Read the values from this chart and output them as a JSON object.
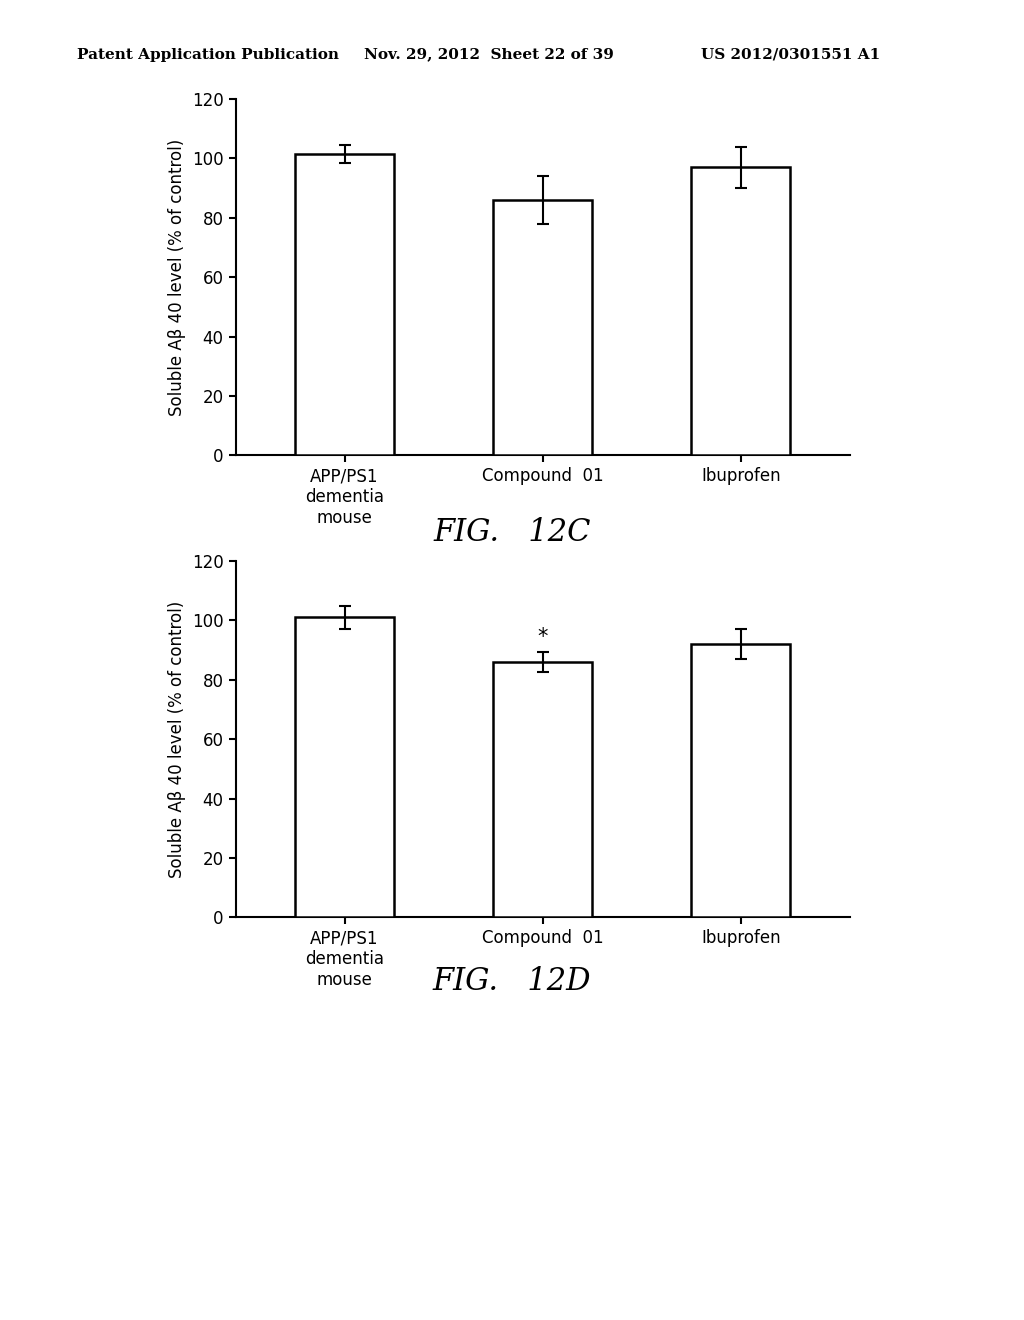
{
  "header_left": "Patent Application Publication",
  "header_mid": "Nov. 29, 2012  Sheet 22 of 39",
  "header_right": "US 2012/0301551 A1",
  "fig_c": {
    "categories": [
      "APP/PS1\ndementia\nmouse",
      "Compound  01",
      "Ibuprofen"
    ],
    "values": [
      101.5,
      86.0,
      97.0
    ],
    "errors": [
      3.0,
      8.0,
      7.0
    ],
    "ylabel": "Soluble Aβ 40 level (% of control)",
    "ylim": [
      0,
      120
    ],
    "yticks": [
      0,
      20,
      40,
      60,
      80,
      100,
      120
    ],
    "caption": "FIG.   12C",
    "asterisks": [
      false,
      false,
      false
    ]
  },
  "fig_d": {
    "categories": [
      "APP/PS1\ndementia\nmouse",
      "Compound  01",
      "Ibuprofen"
    ],
    "values": [
      101.0,
      86.0,
      92.0
    ],
    "errors": [
      4.0,
      3.5,
      5.0
    ],
    "ylabel": "Soluble Aβ 40 level (% of control)",
    "ylim": [
      0,
      120
    ],
    "yticks": [
      0,
      20,
      40,
      60,
      80,
      100,
      120
    ],
    "caption": "FIG.   12D",
    "asterisks": [
      false,
      true,
      false
    ]
  },
  "background_color": "#ffffff",
  "bar_color": "#ffffff",
  "bar_edgecolor": "#000000",
  "bar_width": 0.5,
  "bar_linewidth": 1.8,
  "error_capsize": 4,
  "error_linewidth": 1.5,
  "axis_linewidth": 1.5,
  "tick_fontsize": 12,
  "ylabel_fontsize": 12,
  "caption_fontsize": 22,
  "header_fontsize": 11
}
